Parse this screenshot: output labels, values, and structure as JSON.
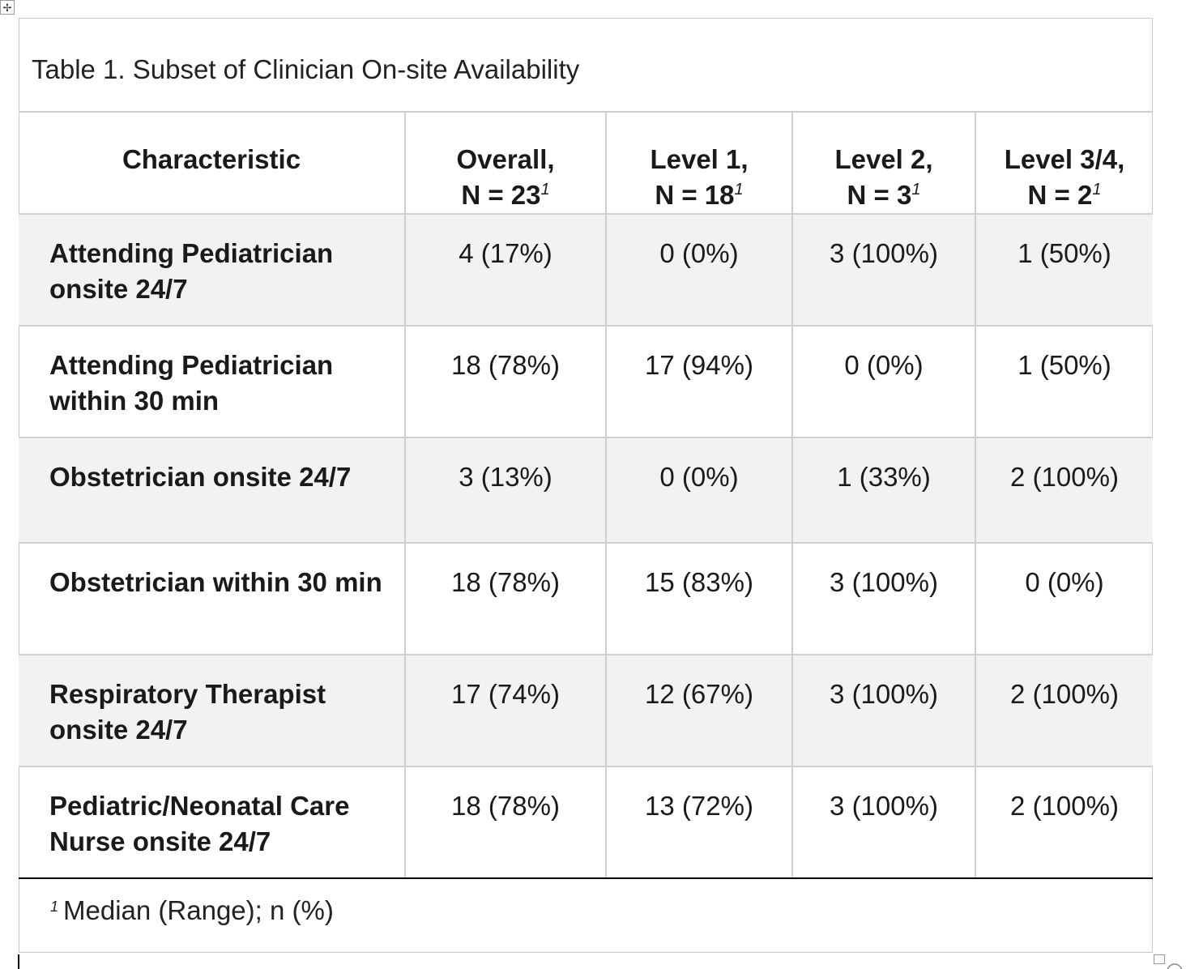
{
  "caption": "Table 1. Subset of Clinician On-site Availability",
  "table": {
    "headers": [
      {
        "label": "Characteristic",
        "sub": ""
      },
      {
        "label": "Overall,",
        "sub": "N = 23"
      },
      {
        "label": "Level 1,",
        "sub": "N = 18"
      },
      {
        "label": "Level 2,",
        "sub": "N = 3"
      },
      {
        "label": "Level 3/4,",
        "sub": "N = 2"
      }
    ],
    "footnote_marker": "1",
    "rows": [
      {
        "characteristic": "Attending Pediatrician onsite 24/7",
        "overall": "4 (17%)",
        "level1": "0 (0%)",
        "level2": "3 (100%)",
        "level34": "1 (50%)"
      },
      {
        "characteristic": "Attending Pediatrician within 30 min",
        "overall": "18 (78%)",
        "level1": "17 (94%)",
        "level2": "0 (0%)",
        "level34": "1 (50%)"
      },
      {
        "characteristic": "Obstetrician onsite 24/7",
        "overall": "3 (13%)",
        "level1": "0 (0%)",
        "level2": "1 (33%)",
        "level34": "2 (100%)"
      },
      {
        "characteristic": "Obstetrician within 30 min",
        "overall": "18 (78%)",
        "level1": "15 (83%)",
        "level2": "3 (100%)",
        "level34": "0 (0%)"
      },
      {
        "characteristic": "Respiratory Therapist onsite 24/7",
        "overall": "17 (74%)",
        "level1": "12 (67%)",
        "level2": "3 (100%)",
        "level34": "2 (100%)"
      },
      {
        "characteristic": "Pediatric/Neonatal Care Nurse onsite 24/7",
        "overall": "18 (78%)",
        "level1": "13 (72%)",
        "level2": "3 (100%)",
        "level34": "2 (100%)"
      }
    ]
  },
  "footnote": {
    "marker": "1",
    "text": "Median (Range); n (%)"
  },
  "icons": {
    "move_handle": "move-arrows-icon",
    "resize_handle": "resize-handle-icon"
  },
  "colors": {
    "shaded_row": "#f2f2f2",
    "grid": "#cfcfcf"
  }
}
